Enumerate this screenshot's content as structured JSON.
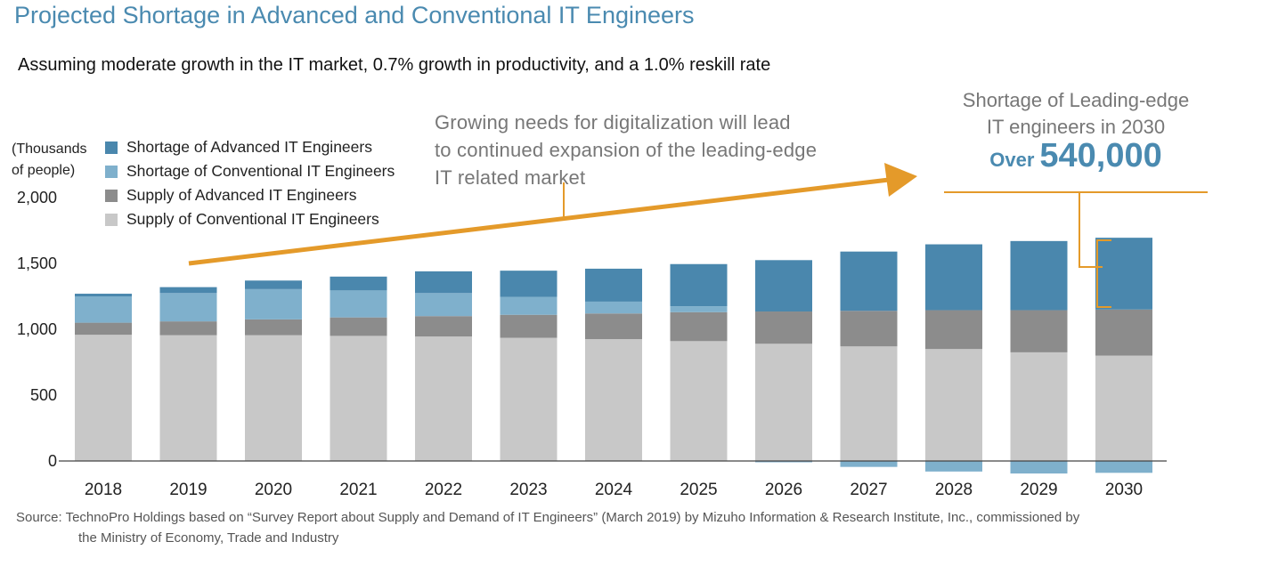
{
  "title": "Projected Shortage in Advanced and Conventional IT Engineers",
  "subtitle": "Assuming moderate growth in the IT market, 0.7% growth in productivity, and a 1.0% reskill rate",
  "unit_line1": "(Thousands",
  "unit_line2": "of people)",
  "callout": {
    "line1": "Growing needs for digitalization will lead",
    "line2": "to continued expansion of the leading-edge",
    "line3": "IT related market"
  },
  "highlight": {
    "line1": "Shortage of Leading-edge",
    "line2": "IT engineers in 2030",
    "prefix": "Over",
    "value": "540,000"
  },
  "source": {
    "line1": "Source: TechnoPro Holdings based on “Survey Report about Supply and Demand of IT Engineers” (March 2019) by Mizuho Information & Research Institute, Inc., commissioned by",
    "line2": "the Ministry of Economy, Trade and Industry"
  },
  "colors": {
    "shortage_advanced": "#4a87ad",
    "shortage_conventional": "#7fb0cc",
    "supply_advanced": "#8c8c8c",
    "supply_conventional": "#c8c8c8",
    "accent_orange": "#e49a2a",
    "title_blue": "#4a8ab0"
  },
  "chart_data": {
    "type": "bar",
    "stacked": true,
    "ylabel": "(Thousands of people)",
    "ylim": [
      0,
      2000
    ],
    "yticks": [
      0,
      500,
      1000,
      1500,
      2000
    ],
    "ytick_labels": [
      "0",
      "500",
      "1,000",
      "1,500",
      "2,000"
    ],
    "categories": [
      "2018",
      "2019",
      "2020",
      "2021",
      "2022",
      "2023",
      "2024",
      "2025",
      "2026",
      "2027",
      "2028",
      "2029",
      "2030"
    ],
    "series": [
      {
        "name": "Supply of Conventional IT Engineers",
        "color": "#c8c8c8",
        "values": [
          958,
          955,
          955,
          950,
          945,
          935,
          925,
          910,
          890,
          870,
          850,
          825,
          800
        ]
      },
      {
        "name": "Supply of Advanced IT Engineers",
        "color": "#8c8c8c",
        "values": [
          92,
          105,
          120,
          140,
          155,
          175,
          195,
          220,
          245,
          270,
          295,
          320,
          350
        ]
      },
      {
        "name": "Shortage of Conventional IT Engineers",
        "color": "#7fb0cc",
        "values": [
          200,
          215,
          230,
          205,
          175,
          135,
          90,
          45,
          -10,
          -45,
          -80,
          -95,
          -90
        ]
      },
      {
        "name": "Shortage of Advanced IT Engineers",
        "color": "#4a87ad",
        "values": [
          20,
          45,
          65,
          105,
          165,
          200,
          250,
          320,
          390,
          450,
          500,
          525,
          545
        ]
      }
    ],
    "legend": [
      "Shortage of Advanced IT Engineers",
      "Shortage of Conventional IT Engineers",
      "Supply of Advanced IT Engineers",
      "Supply of Conventional IT Engineers"
    ],
    "annotations": [
      "Growing needs for digitalization will lead to continued expansion of the leading-edge IT related market",
      "Shortage of Leading-edge IT engineers in 2030 Over 540,000"
    ]
  }
}
